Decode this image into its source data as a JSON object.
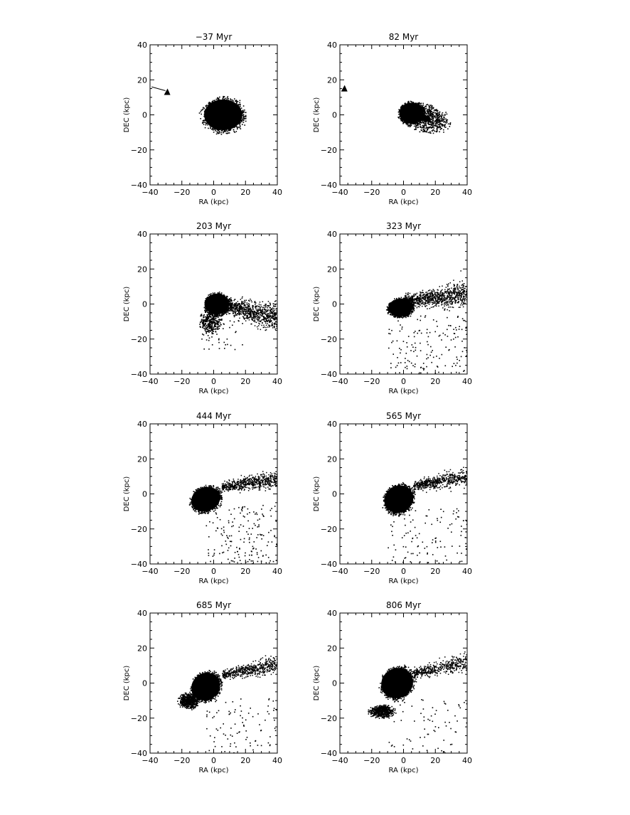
{
  "chart_data": [
    {
      "type": "scatter",
      "title": "−37 Myr",
      "xlabel": "RA (kpc)",
      "ylabel": "DEC (kpc)",
      "xlim": [
        -40,
        40
      ],
      "ylim": [
        -40,
        40
      ],
      "xticks": [
        "−40",
        "−20",
        "0",
        "20",
        "40"
      ],
      "yticks": [
        "−40",
        "−20",
        "0",
        "20",
        "40"
      ],
      "blobs": [
        {
          "cx": 6,
          "cy": 0,
          "rx": 15,
          "ry": 11,
          "n": 1600,
          "dense": 0.8,
          "rot": 0
        }
      ],
      "tails": [],
      "marker": {
        "x": -29,
        "y": 13
      },
      "arrow_from": {
        "x": -39,
        "y": 16
      }
    },
    {
      "type": "scatter",
      "title": "82 Myr",
      "xlabel": "RA (kpc)",
      "ylabel": "DEC (kpc)",
      "xlim": [
        -40,
        40
      ],
      "ylim": [
        -40,
        40
      ],
      "xticks": [
        "−40",
        "−20",
        "0",
        "20",
        "40"
      ],
      "yticks": [
        "−40",
        "−20",
        "0",
        "20",
        "40"
      ],
      "blobs": [
        {
          "cx": 5,
          "cy": 1,
          "rx": 9,
          "ry": 7,
          "n": 1400,
          "dense": 0.85,
          "rot": 0
        },
        {
          "cx": 14,
          "cy": -2,
          "rx": 16,
          "ry": 9,
          "n": 700,
          "dense": 0.2,
          "rot": -0.2
        }
      ],
      "tails": [],
      "marker": {
        "x": -37,
        "y": 15
      },
      "arrow_from": null
    },
    {
      "type": "scatter",
      "title": "203 Myr",
      "xlabel": "RA (kpc)",
      "ylabel": "DEC (kpc)",
      "xlim": [
        -40,
        40
      ],
      "ylim": [
        -40,
        40
      ],
      "xticks": [
        "−40",
        "−20",
        "0",
        "20",
        "40"
      ],
      "yticks": [
        "−40",
        "−20",
        "0",
        "20",
        "40"
      ],
      "blobs": [
        {
          "cx": 2,
          "cy": 0,
          "rx": 9,
          "ry": 7,
          "n": 1400,
          "dense": 0.85,
          "rot": 0
        },
        {
          "cx": -2,
          "cy": -10,
          "rx": 8,
          "ry": 8,
          "n": 300,
          "dense": 0.1,
          "rot": 0
        }
      ],
      "tails": [
        {
          "x0": 5,
          "y0": 0,
          "x1": 40,
          "y1": -8,
          "width": 8,
          "n": 900
        }
      ],
      "halo": {
        "xmin": -8,
        "xmax": 18,
        "ymin": -26,
        "ymax": -5,
        "n": 60
      },
      "marker": null,
      "arrow_from": null
    },
    {
      "type": "scatter",
      "title": "323 Myr",
      "xlabel": "RA (kpc)",
      "ylabel": "DEC (kpc)",
      "xlim": [
        -40,
        40
      ],
      "ylim": [
        -40,
        40
      ],
      "xticks": [
        "−40",
        "−20",
        "0",
        "20",
        "40"
      ],
      "yticks": [
        "−40",
        "−20",
        "0",
        "20",
        "40"
      ],
      "blobs": [
        {
          "cx": -2,
          "cy": -2,
          "rx": 9,
          "ry": 6,
          "n": 1400,
          "dense": 0.85,
          "rot": 0.1
        }
      ],
      "tails": [
        {
          "x0": 0,
          "y0": 2,
          "x1": 40,
          "y1": 6,
          "width": 7,
          "n": 900
        }
      ],
      "halo": {
        "xmin": -10,
        "xmax": 40,
        "ymin": -40,
        "ymax": -6,
        "n": 160
      },
      "marker": null,
      "arrow_from": null
    },
    {
      "type": "scatter",
      "title": "444 Myr",
      "xlabel": "RA (kpc)",
      "ylabel": "DEC (kpc)",
      "xlim": [
        -40,
        40
      ],
      "ylim": [
        -40,
        40
      ],
      "xticks": [
        "−40",
        "−20",
        "0",
        "20",
        "40"
      ],
      "yticks": [
        "−40",
        "−20",
        "0",
        "20",
        "40"
      ],
      "blobs": [
        {
          "cx": -5,
          "cy": -3,
          "rx": 11,
          "ry": 8,
          "n": 1500,
          "dense": 0.85,
          "rot": 0.35
        }
      ],
      "tails": [
        {
          "x0": 5,
          "y0": 4,
          "x1": 40,
          "y1": 9,
          "width": 5,
          "n": 600
        }
      ],
      "halo": {
        "xmin": -5,
        "xmax": 40,
        "ymin": -40,
        "ymax": -6,
        "n": 170
      },
      "marker": null,
      "arrow_from": null
    },
    {
      "type": "scatter",
      "title": "565 Myr",
      "xlabel": "RA (kpc)",
      "ylabel": "DEC (kpc)",
      "xlim": [
        -40,
        40
      ],
      "ylim": [
        -40,
        40
      ],
      "xticks": [
        "−40",
        "−20",
        "0",
        "20",
        "40"
      ],
      "yticks": [
        "−40",
        "−20",
        "0",
        "20",
        "40"
      ],
      "blobs": [
        {
          "cx": -3,
          "cy": -3,
          "rx": 11,
          "ry": 9,
          "n": 1500,
          "dense": 0.85,
          "rot": 0.5
        }
      ],
      "tails": [
        {
          "x0": 6,
          "y0": 5,
          "x1": 40,
          "y1": 10,
          "width": 5,
          "n": 550
        }
      ],
      "halo": {
        "xmin": -10,
        "xmax": 40,
        "ymin": -40,
        "ymax": -8,
        "n": 110
      },
      "marker": null,
      "arrow_from": null
    },
    {
      "type": "scatter",
      "title": "685 Myr",
      "xlabel": "RA (kpc)",
      "ylabel": "DEC (kpc)",
      "xlim": [
        -40,
        40
      ],
      "ylim": [
        -40,
        40
      ],
      "xticks": [
        "−40",
        "−20",
        "0",
        "20",
        "40"
      ],
      "yticks": [
        "−40",
        "−20",
        "0",
        "20",
        "40"
      ],
      "blobs": [
        {
          "cx": -5,
          "cy": -2,
          "rx": 11,
          "ry": 9,
          "n": 1500,
          "dense": 0.85,
          "rot": 0.6
        },
        {
          "cx": -16,
          "cy": -10,
          "rx": 7,
          "ry": 5,
          "n": 500,
          "dense": 0.3,
          "rot": 0
        }
      ],
      "tails": [
        {
          "x0": 5,
          "y0": 5,
          "x1": 40,
          "y1": 11,
          "width": 5,
          "n": 500
        }
      ],
      "halo": {
        "xmin": -5,
        "xmax": 40,
        "ymin": -40,
        "ymax": -8,
        "n": 90
      },
      "marker": null,
      "arrow_from": null
    },
    {
      "type": "scatter",
      "title": "806 Myr",
      "xlabel": "RA (kpc)",
      "ylabel": "DEC (kpc)",
      "xlim": [
        -40,
        40
      ],
      "ylim": [
        -40,
        40
      ],
      "xticks": [
        "−40",
        "−20",
        "0",
        "20",
        "40"
      ],
      "yticks": [
        "−40",
        "−20",
        "0",
        "20",
        "40"
      ],
      "blobs": [
        {
          "cx": -4,
          "cy": 0,
          "rx": 12,
          "ry": 10,
          "n": 1600,
          "dense": 0.85,
          "rot": 0.5
        },
        {
          "cx": -14,
          "cy": -16,
          "rx": 9,
          "ry": 4,
          "n": 500,
          "dense": 0.25,
          "rot": 0
        }
      ],
      "tails": [
        {
          "x0": 6,
          "y0": 6,
          "x1": 40,
          "y1": 12,
          "width": 5,
          "n": 450
        }
      ],
      "halo": {
        "xmin": -10,
        "xmax": 40,
        "ymin": -40,
        "ymax": -8,
        "n": 70
      },
      "marker": null,
      "arrow_from": null
    }
  ]
}
